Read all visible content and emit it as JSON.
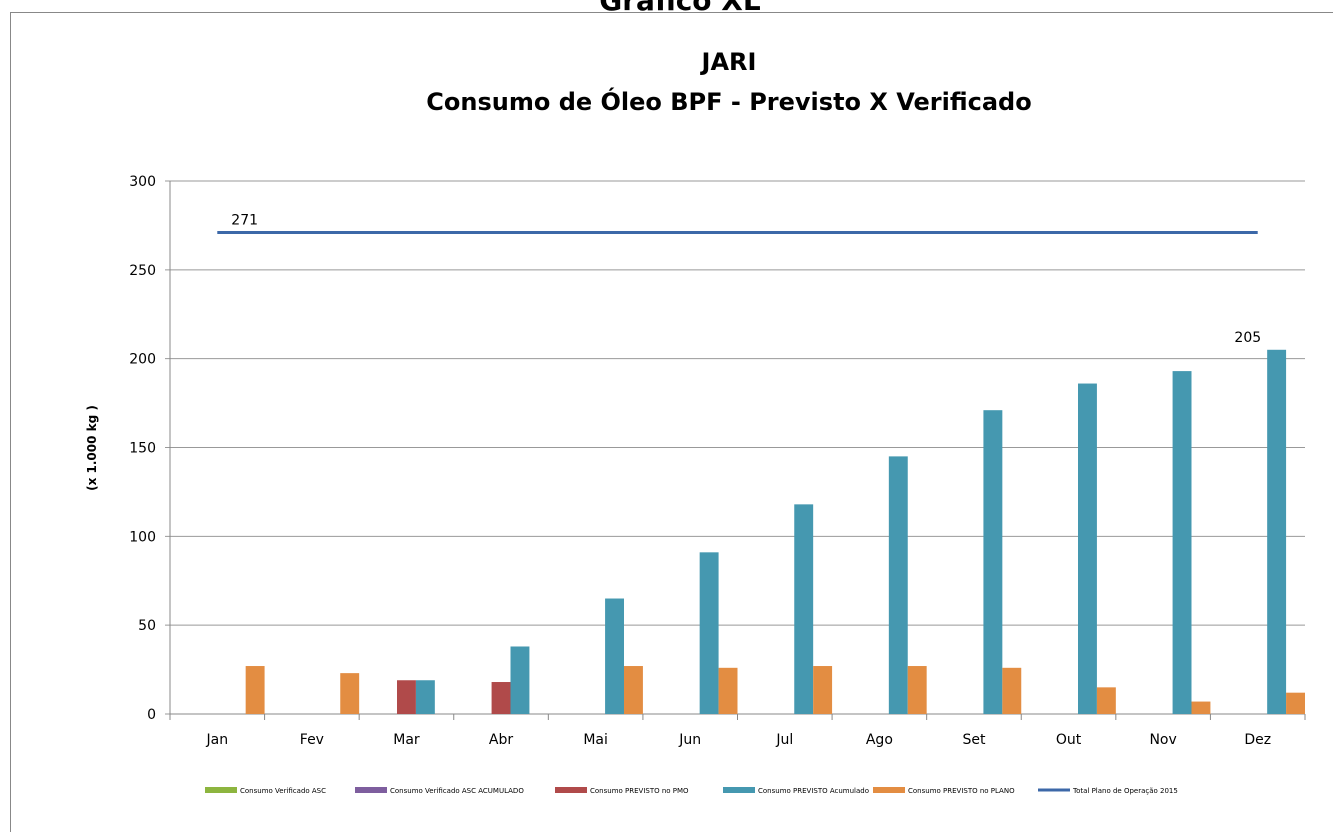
{
  "header_title": "Gráfico XL",
  "chart_data": {
    "type": "bar",
    "title": "JARI",
    "subtitle": "Consumo de Óleo BPF - Previsto X Verificado",
    "y_label": "(x 1.000 kg )",
    "categories": [
      "Jan",
      "Fev",
      "Mar",
      "Abr",
      "Mai",
      "Jun",
      "Jul",
      "Ago",
      "Set",
      "Out",
      "Nov",
      "Dez"
    ],
    "ylim": [
      0,
      300
    ],
    "yticks": [
      0,
      50,
      100,
      150,
      200,
      250,
      300
    ],
    "grid": true,
    "legend": "bottom",
    "series": [
      {
        "name": "Consumo Verificado ASC",
        "color": "#8db53f",
        "type": "bar",
        "values": [
          null,
          null,
          null,
          null,
          null,
          null,
          null,
          null,
          null,
          null,
          null,
          null
        ]
      },
      {
        "name": "Consumo Verificado ASC ACUMULADO",
        "color": "#7e5e9e",
        "type": "bar",
        "values": [
          null,
          null,
          null,
          null,
          null,
          null,
          null,
          null,
          null,
          null,
          null,
          null
        ]
      },
      {
        "name": "Consumo PREVISTO no PMO",
        "color": "#b04a4a",
        "type": "bar",
        "values": [
          null,
          null,
          19,
          18,
          null,
          null,
          null,
          null,
          null,
          null,
          null,
          null
        ]
      },
      {
        "name": "Consumo PREVISTO Acumulado",
        "color": "#4598b0",
        "type": "bar",
        "values": [
          null,
          null,
          19,
          38,
          65,
          91,
          118,
          145,
          171,
          186,
          193,
          205
        ],
        "labeled": [
          11
        ]
      },
      {
        "name": "Consumo PREVISTO no PLANO",
        "color": "#e38d42",
        "type": "bar",
        "values": [
          27,
          23,
          null,
          null,
          27,
          26,
          27,
          27,
          26,
          15,
          7,
          12
        ]
      },
      {
        "name": "Total Plano de Operação 2015",
        "color": "#3c68a8",
        "type": "line",
        "values": [
          271,
          271,
          271,
          271,
          271,
          271,
          271,
          271,
          271,
          271,
          271,
          271
        ],
        "labeled": [
          0
        ]
      }
    ]
  }
}
